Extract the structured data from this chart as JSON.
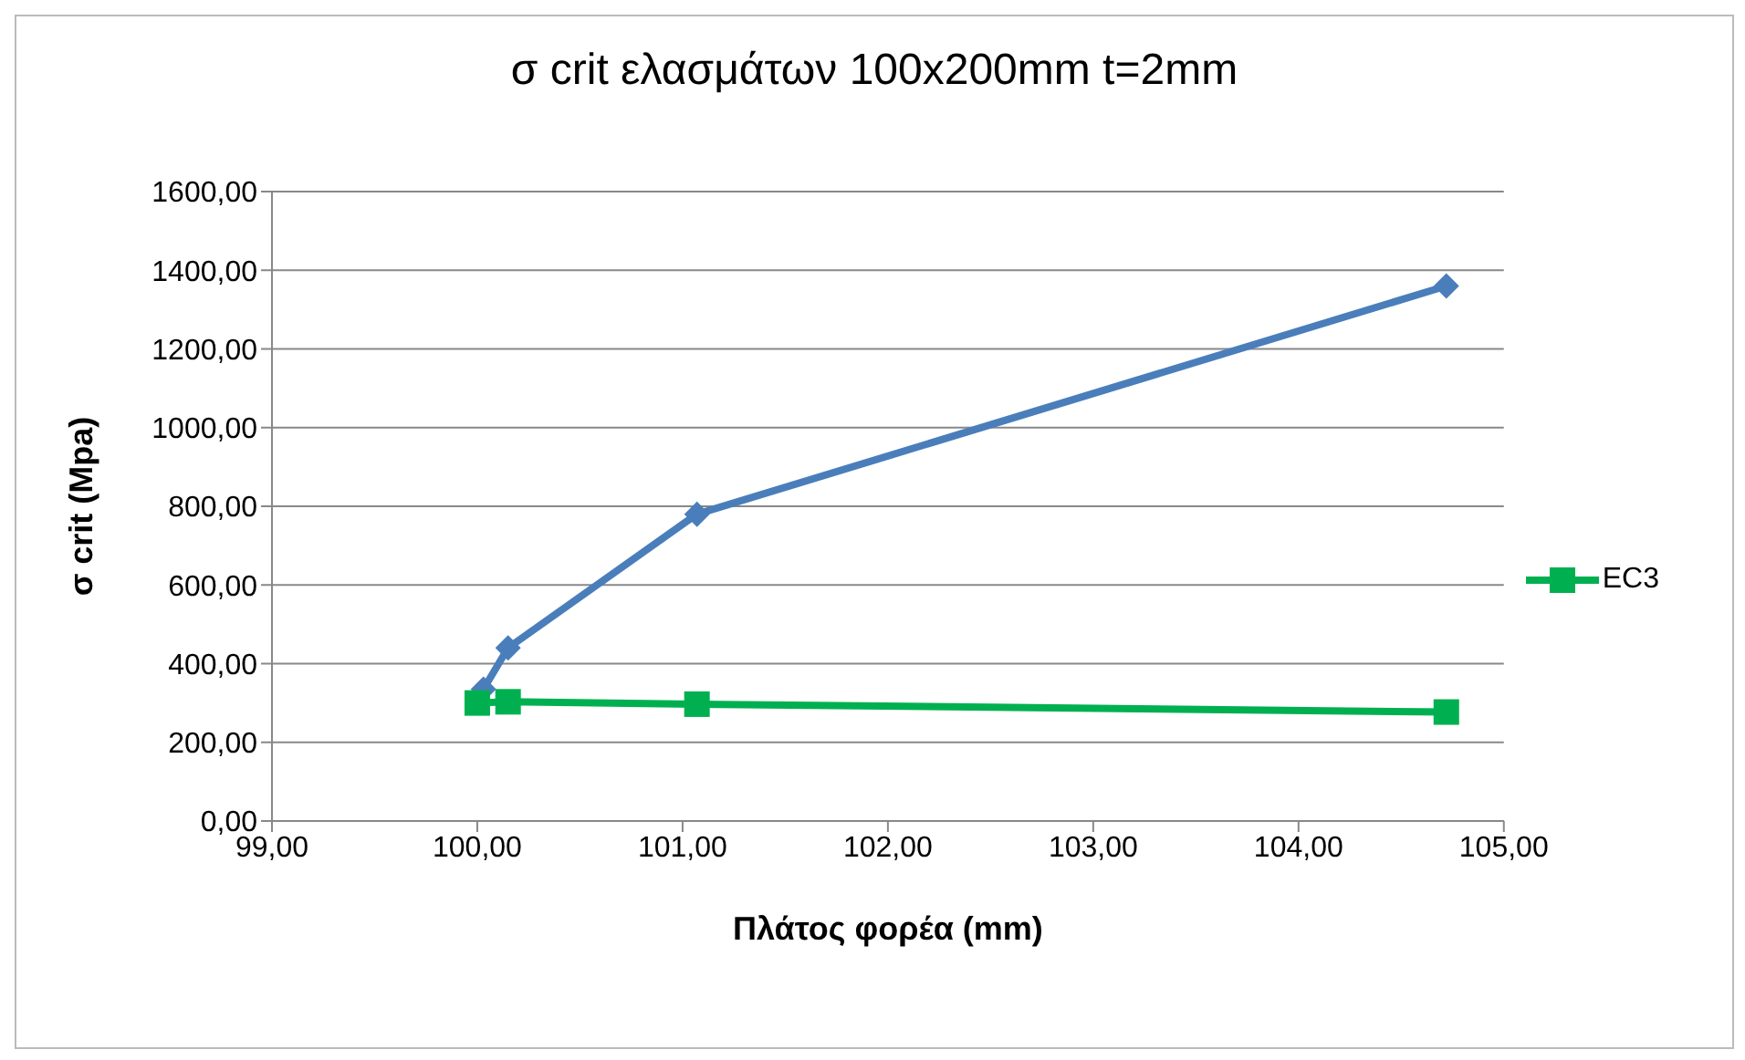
{
  "chart_data": {
    "type": "line",
    "title": "σ crit ελασμάτων 100x200mm   t=2mm",
    "xlabel": "Πλάτος φορέα (mm)",
    "ylabel": "σ crit (Mpa)",
    "series": [
      {
        "color": "#4a7ebb",
        "marker": "diamond",
        "x": [
          100.03,
          100.15,
          101.07,
          104.72
        ],
        "values": [
          335,
          440,
          780,
          1360
        ]
      },
      {
        "name": "EC3",
        "color": "#00b050",
        "marker": "square",
        "x": [
          100.0,
          100.15,
          101.07,
          104.72
        ],
        "values": [
          300,
          303,
          297,
          277
        ]
      }
    ],
    "xlim": [
      99,
      105
    ],
    "xticks": [
      {
        "value": 99,
        "label": "99,00"
      },
      {
        "value": 100,
        "label": "100,00"
      },
      {
        "value": 101,
        "label": "101,00"
      },
      {
        "value": 102,
        "label": "102,00"
      },
      {
        "value": 103,
        "label": "103,00"
      },
      {
        "value": 104,
        "label": "104,00"
      },
      {
        "value": 105,
        "label": "105,00"
      }
    ],
    "ylim": [
      0,
      1600
    ],
    "yticks": [
      {
        "value": 0,
        "label": "0,00"
      },
      {
        "value": 200,
        "label": "200,00"
      },
      {
        "value": 400,
        "label": "400,00"
      },
      {
        "value": 600,
        "label": "600,00"
      },
      {
        "value": 800,
        "label": "800,00"
      },
      {
        "value": 1000,
        "label": "1000,00"
      },
      {
        "value": 1200,
        "label": "1200,00"
      },
      {
        "value": 1400,
        "label": "1400,00"
      },
      {
        "value": 1600,
        "label": "1600,00"
      }
    ],
    "grid": "y",
    "legend": "right"
  }
}
